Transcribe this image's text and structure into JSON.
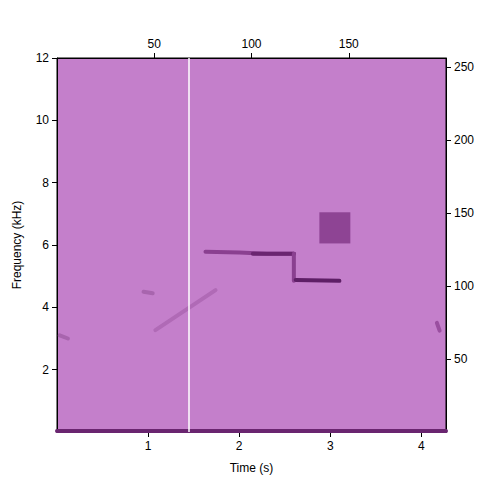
{
  "chart_data": {
    "type": "spectrogram",
    "xlabel": "Time (s)",
    "ylabel": "Frequency (kHz)",
    "xlim": [
      0,
      4.27
    ],
    "xticks": [
      1,
      2,
      3,
      4
    ],
    "ylim": [
      0,
      12
    ],
    "yticks": [
      2,
      4,
      6,
      8,
      10,
      12
    ],
    "x2lim": [
      0,
      200
    ],
    "x2ticks": [
      50,
      100,
      150
    ],
    "y2lim": [
      0,
      256
    ],
    "y2ticks": [
      50,
      100,
      150,
      200,
      250
    ],
    "color": "#c47fcb",
    "cursor": {
      "x": 1.45,
      "color": "#ffffff"
    },
    "tracks": [
      {
        "color": "#6a2570",
        "values": [
          [
            0,
            0.03
          ],
          [
            4.27,
            0.03
          ]
        ]
      },
      {
        "color": "#a865ae",
        "values": [
          [
            0.03,
            3.1
          ],
          [
            0.12,
            3.0
          ]
        ]
      },
      {
        "color": "#a865ae",
        "values": [
          [
            0.95,
            4.5
          ],
          [
            1.05,
            4.45
          ]
        ]
      },
      {
        "color": "#b06ab6",
        "values": [
          [
            1.08,
            3.27
          ],
          [
            1.74,
            4.55
          ]
        ]
      },
      {
        "color": "#8a4090",
        "values": [
          [
            1.63,
            5.78
          ],
          [
            2.0,
            5.76
          ],
          [
            2.3,
            5.72
          ],
          [
            2.6,
            5.72
          ]
        ]
      },
      {
        "color": "#6a2570",
        "values": [
          [
            2.15,
            5.72
          ],
          [
            2.6,
            5.72
          ]
        ]
      },
      {
        "color": "#8a4090",
        "values": [
          [
            2.6,
            5.72
          ],
          [
            2.6,
            4.85
          ]
        ]
      },
      {
        "color": "#5e1f66",
        "values": [
          [
            2.62,
            4.88
          ],
          [
            3.1,
            4.85
          ]
        ]
      },
      {
        "color": "#9a4fa0",
        "values": [
          [
            4.17,
            3.5
          ],
          [
            4.2,
            3.25
          ]
        ]
      }
    ],
    "blocks": [
      {
        "color": "#8e4494",
        "values": [
          2.88,
          3.22,
          6.05,
          7.05
        ]
      }
    ]
  }
}
